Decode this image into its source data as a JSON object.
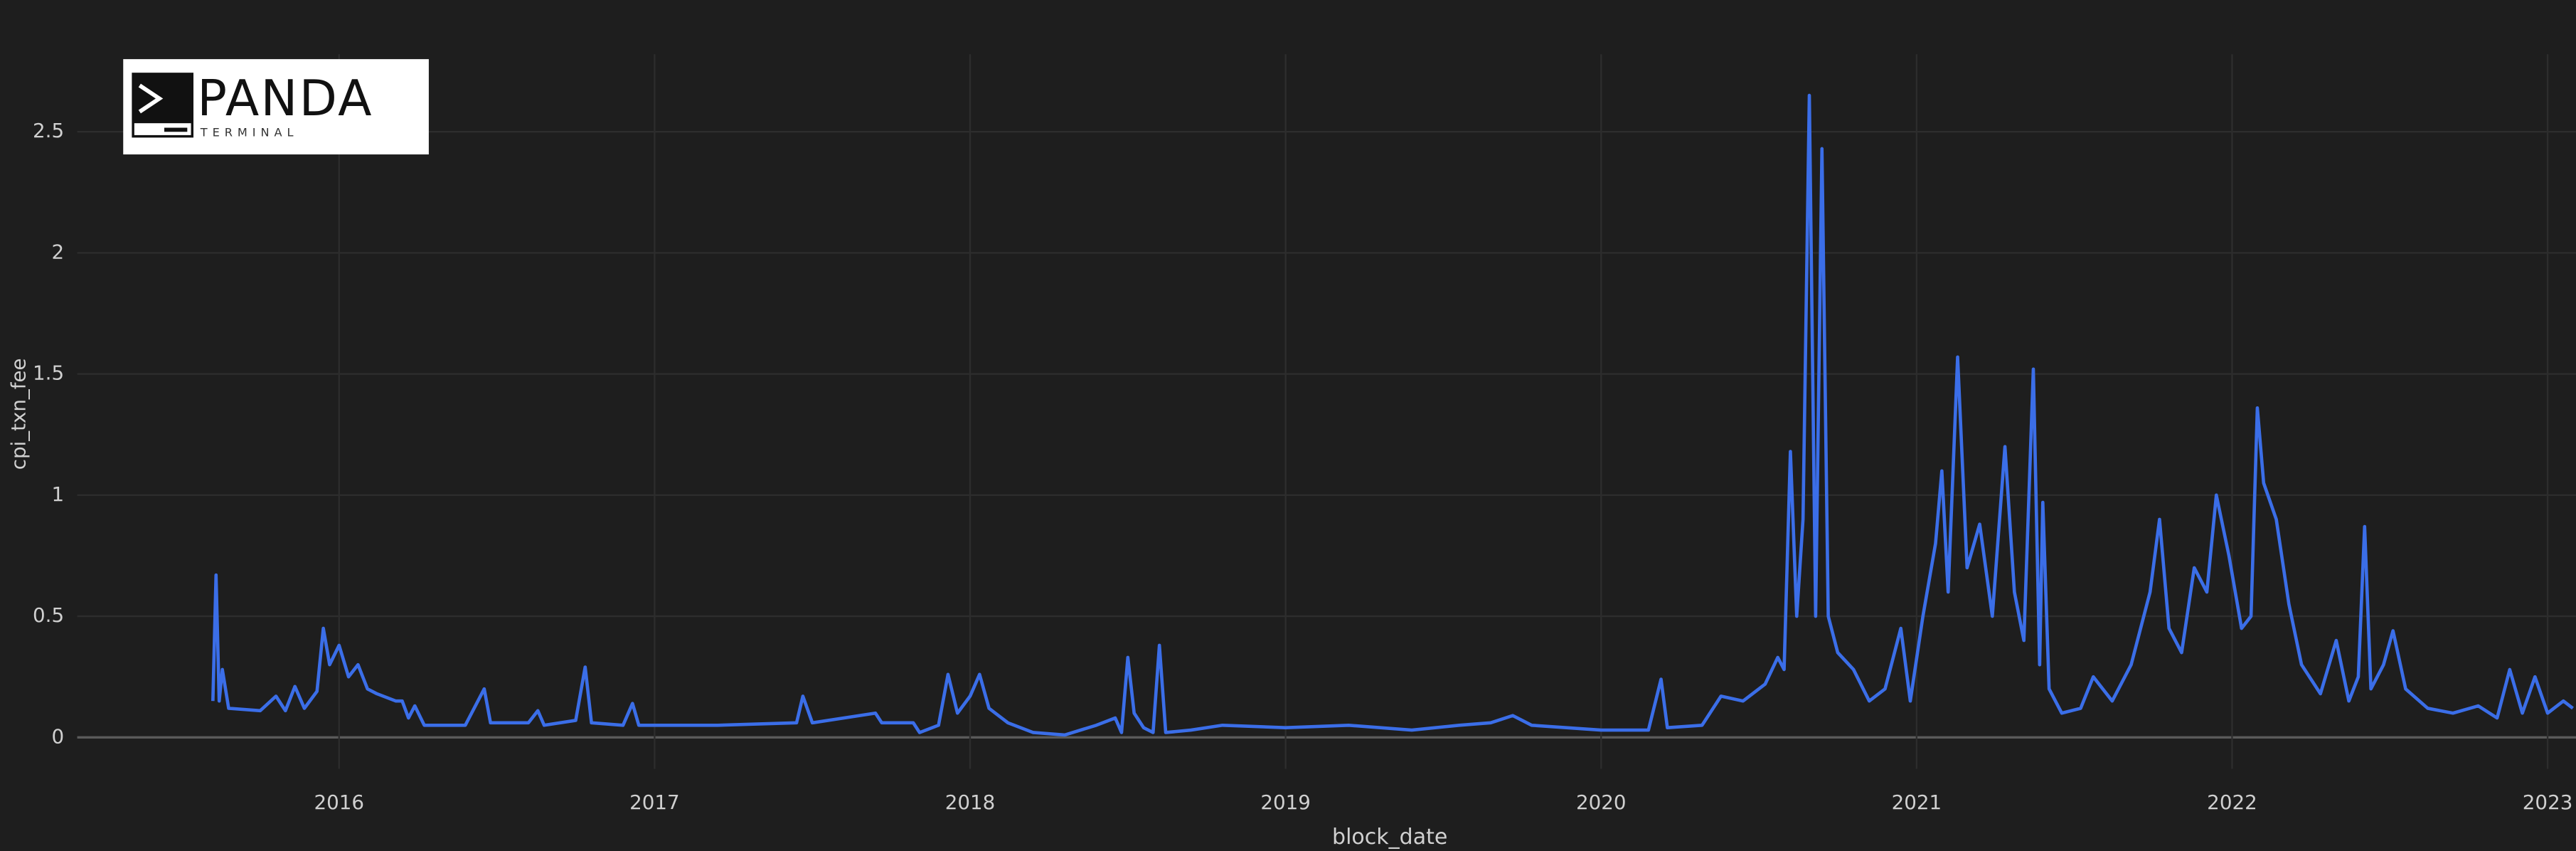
{
  "logo": {
    "name": "PANDA",
    "sub": "TERMINAL"
  },
  "chart_data": {
    "type": "line",
    "xlabel": "block_date",
    "ylabel": "cpi_txn_fee",
    "x": [
      2015.6,
      2015.61,
      2015.62,
      2015.63,
      2015.65,
      2015.75,
      2015.8,
      2015.83,
      2015.86,
      2015.89,
      2015.93,
      2015.95,
      2015.97,
      2016.0,
      2016.03,
      2016.06,
      2016.09,
      2016.12,
      2016.18,
      2016.2,
      2016.22,
      2016.24,
      2016.27,
      2016.4,
      2016.46,
      2016.48,
      2016.6,
      2016.63,
      2016.65,
      2016.75,
      2016.78,
      2016.8,
      2016.9,
      2016.93,
      2016.95,
      2017.2,
      2017.45,
      2017.47,
      2017.5,
      2017.7,
      2017.72,
      2017.82,
      2017.84,
      2017.9,
      2017.93,
      2017.96,
      2018.0,
      2018.03,
      2018.06,
      2018.12,
      2018.2,
      2018.3,
      2018.4,
      2018.46,
      2018.48,
      2018.5,
      2018.52,
      2018.55,
      2018.58,
      2018.6,
      2018.62,
      2018.7,
      2018.8,
      2019.0,
      2019.2,
      2019.4,
      2019.55,
      2019.65,
      2019.72,
      2019.78,
      2020.0,
      2020.15,
      2020.19,
      2020.21,
      2020.32,
      2020.38,
      2020.45,
      2020.52,
      2020.56,
      2020.58,
      2020.6,
      2020.62,
      2020.64,
      2020.66,
      2020.68,
      2020.7,
      2020.72,
      2020.75,
      2020.8,
      2020.85,
      2020.9,
      2020.95,
      2020.98,
      2021.02,
      2021.06,
      2021.08,
      2021.1,
      2021.13,
      2021.16,
      2021.2,
      2021.24,
      2021.28,
      2021.31,
      2021.34,
      2021.37,
      2021.39,
      2021.4,
      2021.42,
      2021.46,
      2021.52,
      2021.56,
      2021.62,
      2021.68,
      2021.74,
      2021.77,
      2021.8,
      2021.84,
      2021.88,
      2021.92,
      2021.95,
      2021.99,
      2022.03,
      2022.06,
      2022.08,
      2022.1,
      2022.14,
      2022.18,
      2022.22,
      2022.28,
      2022.33,
      2022.37,
      2022.4,
      2022.42,
      2022.44,
      2022.48,
      2022.51,
      2022.55,
      2022.62,
      2022.7,
      2022.78,
      2022.84,
      2022.88,
      2022.92,
      2022.96,
      2023.0,
      2023.05,
      2023.08
    ],
    "values": [
      0.15,
      0.67,
      0.15,
      0.28,
      0.12,
      0.11,
      0.17,
      0.11,
      0.21,
      0.12,
      0.19,
      0.45,
      0.3,
      0.38,
      0.25,
      0.3,
      0.2,
      0.18,
      0.15,
      0.15,
      0.08,
      0.13,
      0.05,
      0.05,
      0.2,
      0.06,
      0.06,
      0.11,
      0.05,
      0.07,
      0.29,
      0.06,
      0.05,
      0.14,
      0.05,
      0.05,
      0.06,
      0.17,
      0.06,
      0.1,
      0.06,
      0.06,
      0.02,
      0.05,
      0.26,
      0.1,
      0.17,
      0.26,
      0.12,
      0.06,
      0.02,
      0.01,
      0.05,
      0.08,
      0.02,
      0.33,
      0.1,
      0.04,
      0.02,
      0.38,
      0.02,
      0.03,
      0.05,
      0.04,
      0.05,
      0.03,
      0.05,
      0.06,
      0.09,
      0.05,
      0.03,
      0.03,
      0.24,
      0.04,
      0.05,
      0.17,
      0.15,
      0.22,
      0.33,
      0.28,
      1.18,
      0.5,
      0.9,
      2.65,
      0.5,
      2.43,
      0.5,
      0.35,
      0.28,
      0.15,
      0.2,
      0.45,
      0.15,
      0.5,
      0.8,
      1.1,
      0.6,
      1.57,
      0.7,
      0.88,
      0.5,
      1.2,
      0.6,
      0.4,
      1.52,
      0.3,
      0.97,
      0.2,
      0.1,
      0.12,
      0.25,
      0.15,
      0.3,
      0.6,
      0.9,
      0.45,
      0.35,
      0.7,
      0.6,
      1.0,
      0.75,
      0.45,
      0.5,
      1.36,
      1.05,
      0.9,
      0.55,
      0.3,
      0.18,
      0.4,
      0.15,
      0.25,
      0.87,
      0.2,
      0.3,
      0.44,
      0.2,
      0.12,
      0.1,
      0.13,
      0.08,
      0.28,
      0.1,
      0.25,
      0.1,
      0.15,
      0.12
    ],
    "color": "#3b6ee8",
    "xlim": [
      2015.17,
      2023.09
    ],
    "xticks": [
      2016,
      2017,
      2018,
      2019,
      2020,
      2021,
      2022,
      2023
    ],
    "ylim": [
      -0.13,
      2.82
    ],
    "yticks": [
      0,
      0.5,
      1,
      1.5,
      2,
      2.5
    ],
    "grid": true
  }
}
